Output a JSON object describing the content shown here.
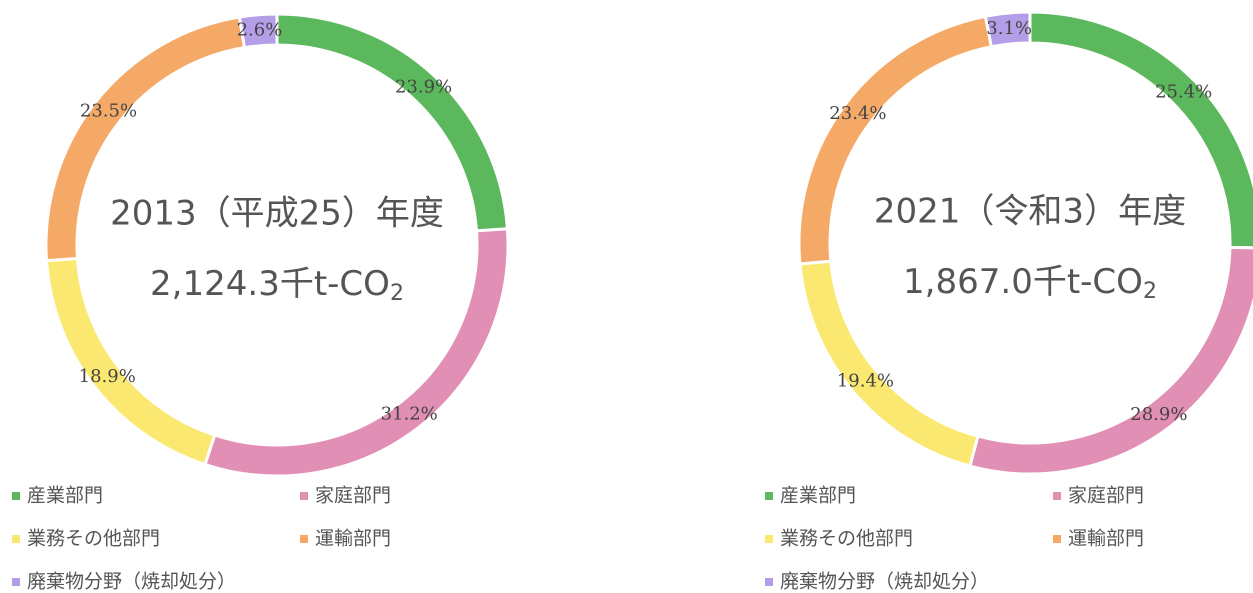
{
  "chart_data": [
    {
      "type": "donut",
      "title": "2013（平成25）年度",
      "total": "2,124.3千t-CO",
      "total_subscript": "2",
      "categories": [
        "産業部門",
        "家庭部門",
        "業務その他部門",
        "運輸部門",
        "廃棄物分野（焼却処分）"
      ],
      "values": [
        23.9,
        31.2,
        18.9,
        23.5,
        2.6
      ],
      "value_labels": [
        "23.9%",
        "31.2%",
        "18.9%",
        "23.5%",
        "2.6%"
      ],
      "colors": [
        "#5cb85c",
        "#e28fb5",
        "#fbe870",
        "#f5a967",
        "#b49ee8"
      ]
    },
    {
      "type": "donut",
      "title": "2021（令和3）年度",
      "total": "1,867.0千t-CO",
      "total_subscript": "2",
      "categories": [
        "産業部門",
        "家庭部門",
        "業務その他部門",
        "運輸部門",
        "廃棄物分野（焼却処分）"
      ],
      "values": [
        25.4,
        28.9,
        19.4,
        23.4,
        3.1
      ],
      "value_labels": [
        "25.4%",
        "28.9%",
        "19.4%",
        "23.4%",
        "3.1%"
      ],
      "colors": [
        "#5cb85c",
        "#e28fb5",
        "#fbe870",
        "#f5a967",
        "#b49ee8"
      ]
    }
  ]
}
